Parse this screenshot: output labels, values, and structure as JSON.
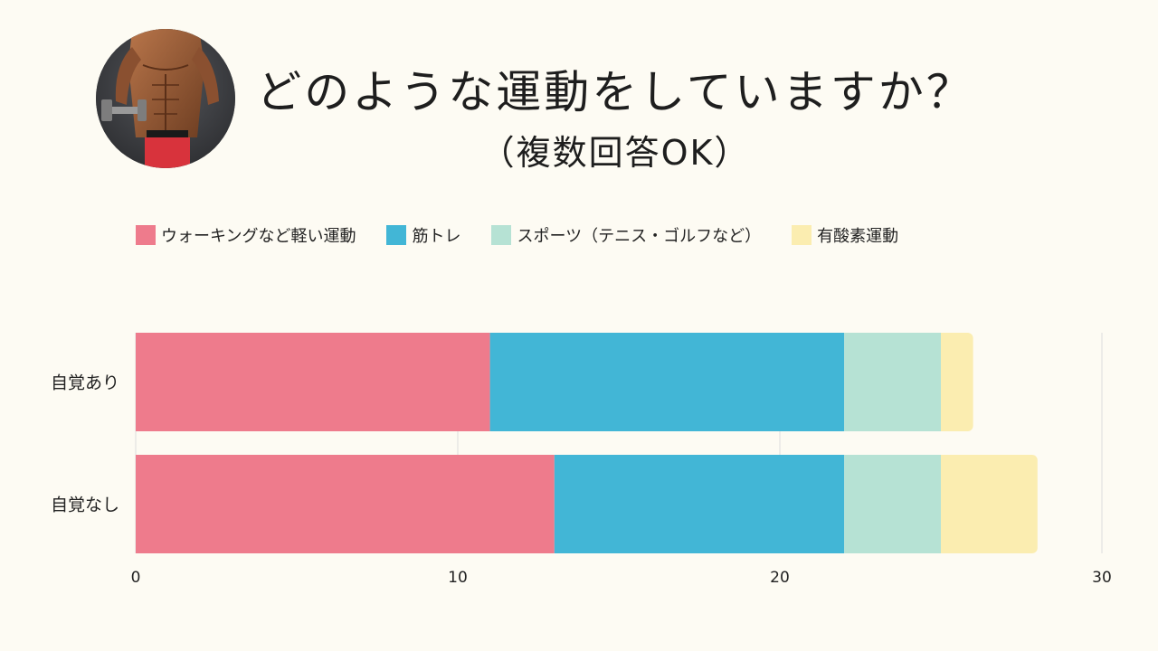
{
  "header": {
    "title": "どのような運動をしていますか？",
    "subtitle": "（複数回答OK）"
  },
  "colors": {
    "background": "#fdfbf3",
    "grid": "#dddddd"
  },
  "chart_data": {
    "type": "bar",
    "orientation": "horizontal",
    "stacked": true,
    "categories": [
      "自覚あり",
      "自覚なし"
    ],
    "series": [
      {
        "name": "ウォーキングなど軽い運動",
        "color": "#ee7b8c",
        "values": [
          11,
          13
        ]
      },
      {
        "name": "筋トレ",
        "color": "#42b6d6",
        "values": [
          11,
          9
        ]
      },
      {
        "name": "スポーツ（テニス・ゴルフなど）",
        "color": "#b6e2d4",
        "values": [
          3,
          3
        ]
      },
      {
        "name": "有酸素運動",
        "color": "#fbedb0",
        "values": [
          1,
          3
        ]
      }
    ],
    "xlim": [
      0,
      30
    ],
    "xticks": [
      0,
      10,
      20,
      30
    ],
    "legend_position": "top",
    "grid": true
  }
}
